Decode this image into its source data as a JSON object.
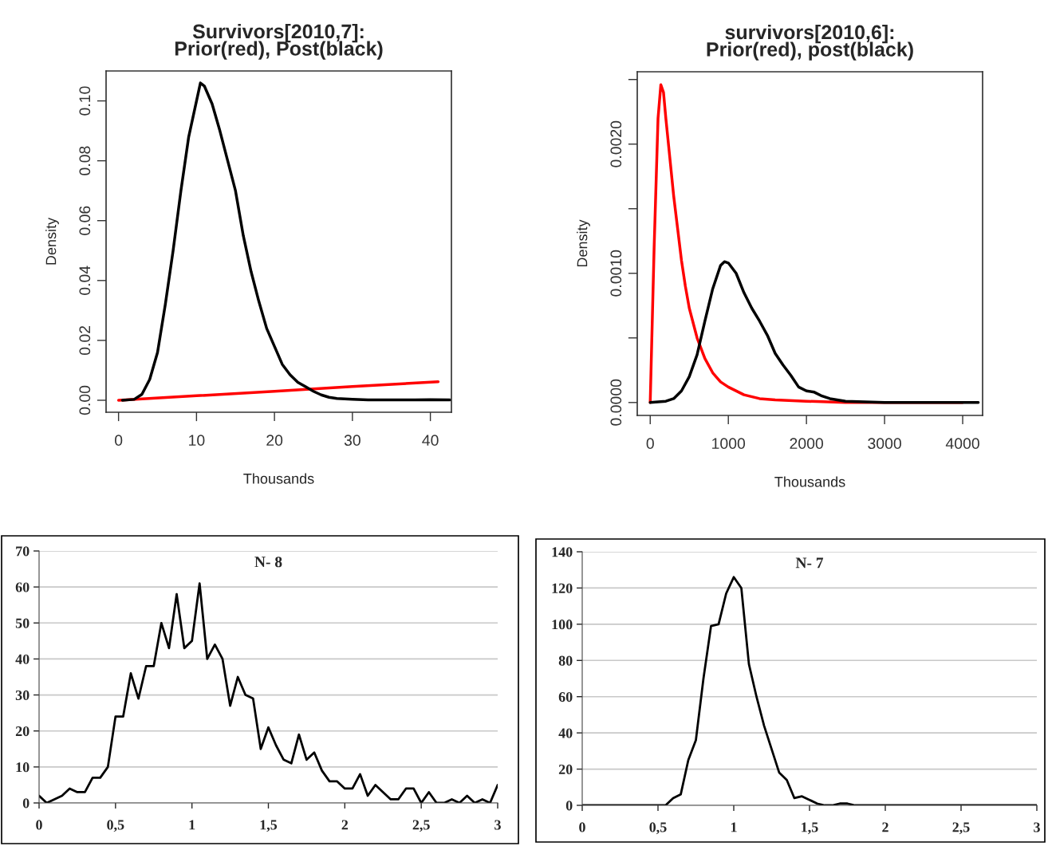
{
  "chart_data": [
    {
      "type": "line",
      "title": "Survivors[2010,7]:\nPrior(red), Post(black)",
      "xlabel": "Thousands",
      "ylabel": "Density",
      "xlim": [
        -1.6,
        42.7
      ],
      "ylim": [
        -0.004,
        0.11
      ],
      "xticks": [
        0,
        10,
        20,
        30,
        40
      ],
      "yticks": [
        {
          "value": 0,
          "label": "0.00"
        },
        {
          "value": 0.02,
          "label": "0.02"
        },
        {
          "value": 0.04,
          "label": "0.04"
        },
        {
          "value": 0.06,
          "label": "0.06"
        },
        {
          "value": 0.08,
          "label": "0.08"
        },
        {
          "value": 0.1,
          "label": "0.10"
        }
      ],
      "series": [
        {
          "color": "#ff0000",
          "x": [
            0,
            10,
            20,
            30,
            41
          ],
          "values": [
            0,
            0.0015,
            0.003,
            0.0046,
            0.0062
          ]
        },
        {
          "color": "#000000",
          "x": [
            0.5,
            2,
            3,
            4,
            5,
            6,
            7,
            8,
            9,
            10,
            10.5,
            11,
            12,
            13,
            14,
            15,
            16,
            17,
            18,
            19,
            20,
            21,
            22,
            23,
            24,
            25,
            26,
            27,
            28,
            30,
            32,
            35,
            38,
            40,
            42.5
          ],
          "values": [
            0,
            0.0003,
            0.002,
            0.007,
            0.016,
            0.032,
            0.05,
            0.07,
            0.088,
            0.1,
            0.106,
            0.105,
            0.099,
            0.09,
            0.08,
            0.07,
            0.055,
            0.043,
            0.033,
            0.024,
            0.018,
            0.012,
            0.0085,
            0.006,
            0.0045,
            0.003,
            0.0018,
            0.001,
            0.0006,
            0.0003,
            0.0001,
            0.0001,
            0.0001,
            0.0002,
            0.0001
          ]
        }
      ]
    },
    {
      "type": "line",
      "title": "survivors[2010,6]:\nPrior(red), post(black)",
      "xlabel": "Thousands",
      "ylabel": "Density",
      "xlim": [
        -166,
        4255
      ],
      "ylim": [
        -0.0001,
        0.00256
      ],
      "xticks": [
        0,
        1000,
        2000,
        3000,
        4000
      ],
      "yticks": [
        {
          "value": 0,
          "label": "0.0000"
        },
        {
          "value": 0.0005,
          "label": null
        },
        {
          "value": 0.001,
          "label": "0.0010"
        },
        {
          "value": 0.0015,
          "label": null
        },
        {
          "value": 0.002,
          "label": "0.0020"
        },
        {
          "value": 0.0025,
          "label": null
        }
      ],
      "series": [
        {
          "color": "#ff0000",
          "x": [
            0,
            50,
            100,
            136,
            170,
            200,
            250,
            300,
            350,
            400,
            450,
            500,
            600,
            700,
            800,
            900,
            1000,
            1200,
            1400,
            1600,
            2000,
            2500,
            3000,
            4000
          ],
          "values": [
            0,
            0.0012,
            0.0022,
            0.00246,
            0.0024,
            0.0022,
            0.0019,
            0.0016,
            0.00135,
            0.0011,
            0.0009,
            0.00073,
            0.0005,
            0.00034,
            0.00023,
            0.00016,
            0.00012,
            6e-05,
            3e-05,
            2e-05,
            1e-05,
            0,
            0,
            0
          ]
        },
        {
          "color": "#000000",
          "x": [
            0,
            200,
            300,
            400,
            500,
            600,
            700,
            800,
            900,
            950,
            1000,
            1100,
            1200,
            1300,
            1400,
            1500,
            1600,
            1700,
            1800,
            1900,
            2000,
            2100,
            2200,
            2300,
            2500,
            3000,
            4200
          ],
          "values": [
            0,
            1e-05,
            3e-05,
            9e-05,
            0.0002,
            0.00037,
            0.00063,
            0.00088,
            0.00106,
            0.00109,
            0.00108,
            0.001,
            0.00085,
            0.00073,
            0.00063,
            0.00052,
            0.00038,
            0.00029,
            0.00021,
            0.00012,
            9e-05,
            8e-05,
            5e-05,
            3e-05,
            1e-05,
            0,
            0
          ]
        }
      ]
    },
    {
      "type": "line",
      "title": "N- 8",
      "grid": "y",
      "xlim": [
        0,
        3
      ],
      "ylim": [
        0,
        70
      ],
      "xticks": [
        0,
        {
          "value": 0.5,
          "label": "0,5"
        },
        1,
        {
          "value": 1.5,
          "label": "1,5"
        },
        2,
        {
          "value": 2.5,
          "label": "2,5"
        },
        3
      ],
      "yticks": [
        0,
        10,
        20,
        30,
        40,
        50,
        60,
        70
      ],
      "series": [
        {
          "color": "#000000",
          "x": [
            0,
            0.05,
            0.1,
            0.15,
            0.2,
            0.25,
            0.3,
            0.35,
            0.4,
            0.45,
            0.5,
            0.55,
            0.6,
            0.65,
            0.7,
            0.75,
            0.8,
            0.85,
            0.9,
            0.95,
            1.0,
            1.05,
            1.1,
            1.15,
            1.2,
            1.25,
            1.3,
            1.35,
            1.4,
            1.45,
            1.5,
            1.55,
            1.6,
            1.65,
            1.7,
            1.75,
            1.8,
            1.85,
            1.9,
            1.95,
            2.0,
            2.05,
            2.1,
            2.15,
            2.2,
            2.25,
            2.3,
            2.35,
            2.4,
            2.45,
            2.5,
            2.55,
            2.6,
            2.65,
            2.7,
            2.75,
            2.8,
            2.85,
            2.9,
            2.95,
            3.0
          ],
          "values": [
            2,
            0,
            1,
            2,
            4,
            3,
            3,
            7,
            7,
            10,
            24,
            24,
            36,
            29,
            38,
            38,
            50,
            43,
            58,
            43,
            45,
            61,
            40,
            44,
            40,
            27,
            35,
            30,
            29,
            15,
            21,
            16,
            12,
            11,
            19,
            12,
            14,
            9,
            6,
            6,
            4,
            4,
            8,
            2,
            5,
            3,
            1,
            1,
            4,
            4,
            0,
            3,
            0,
            0,
            1,
            0,
            2,
            0,
            1,
            0,
            5
          ]
        }
      ]
    },
    {
      "type": "line",
      "title": "N- 7",
      "grid": "y",
      "xlim": [
        0,
        3
      ],
      "ylim": [
        0,
        140
      ],
      "xticks": [
        0,
        {
          "value": 0.5,
          "label": "0,5"
        },
        1,
        {
          "value": 1.5,
          "label": "1,5"
        },
        2,
        {
          "value": 2.5,
          "label": "2,5"
        },
        3
      ],
      "yticks": [
        0,
        20,
        40,
        60,
        80,
        100,
        120,
        140
      ],
      "series": [
        {
          "color": "#000000",
          "x": [
            0,
            0.05,
            0.1,
            0.15,
            0.2,
            0.25,
            0.3,
            0.35,
            0.4,
            0.45,
            0.5,
            0.55,
            0.6,
            0.65,
            0.7,
            0.75,
            0.8,
            0.85,
            0.9,
            0.95,
            1.0,
            1.05,
            1.1,
            1.15,
            1.2,
            1.25,
            1.3,
            1.35,
            1.4,
            1.45,
            1.5,
            1.55,
            1.6,
            1.65,
            1.7,
            1.75,
            1.8,
            1.85,
            1.9,
            1.95,
            2.0,
            2.05,
            2.1,
            2.15,
            2.2,
            2.25,
            2.3,
            2.35,
            2.4,
            2.45,
            2.5,
            2.55,
            2.6,
            2.65,
            2.7,
            2.75,
            2.8,
            2.85,
            2.9,
            2.95,
            3.0
          ],
          "values": [
            0,
            0,
            0,
            0,
            0,
            0,
            0,
            0,
            0,
            0,
            0,
            0,
            4,
            6,
            25,
            36,
            70,
            99,
            100,
            117,
            126,
            120,
            78,
            60,
            44,
            31,
            18,
            14,
            4,
            5,
            3,
            1,
            0,
            0,
            1,
            1,
            0,
            0,
            0,
            0,
            0,
            0,
            0,
            0,
            0,
            0,
            0,
            0,
            0,
            0,
            0,
            0,
            0,
            0,
            0,
            0,
            0,
            0,
            0,
            0,
            0
          ]
        }
      ]
    }
  ]
}
